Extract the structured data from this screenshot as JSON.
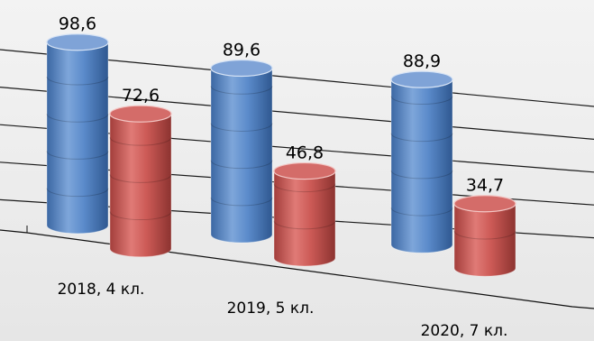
{
  "chart_data": {
    "type": "bar",
    "style": "3d-cylinder",
    "categories": [
      "2018, 4 кл.",
      "2019, 5 кл.",
      "2020, 7 кл."
    ],
    "series": [
      {
        "values": [
          98.6,
          89.6,
          88.9
        ],
        "color": "#4f81bd"
      },
      {
        "values": [
          72.6,
          46.8,
          34.7
        ],
        "color": "#c0504d"
      }
    ],
    "data_labels": [
      [
        "98,6",
        "89,6",
        "88,9"
      ],
      [
        "72,6",
        "46,8",
        "34,7"
      ]
    ],
    "ylim": [
      0,
      100
    ],
    "grid": true,
    "legend": "none",
    "title": "",
    "xlabel": "",
    "ylabel": ""
  }
}
